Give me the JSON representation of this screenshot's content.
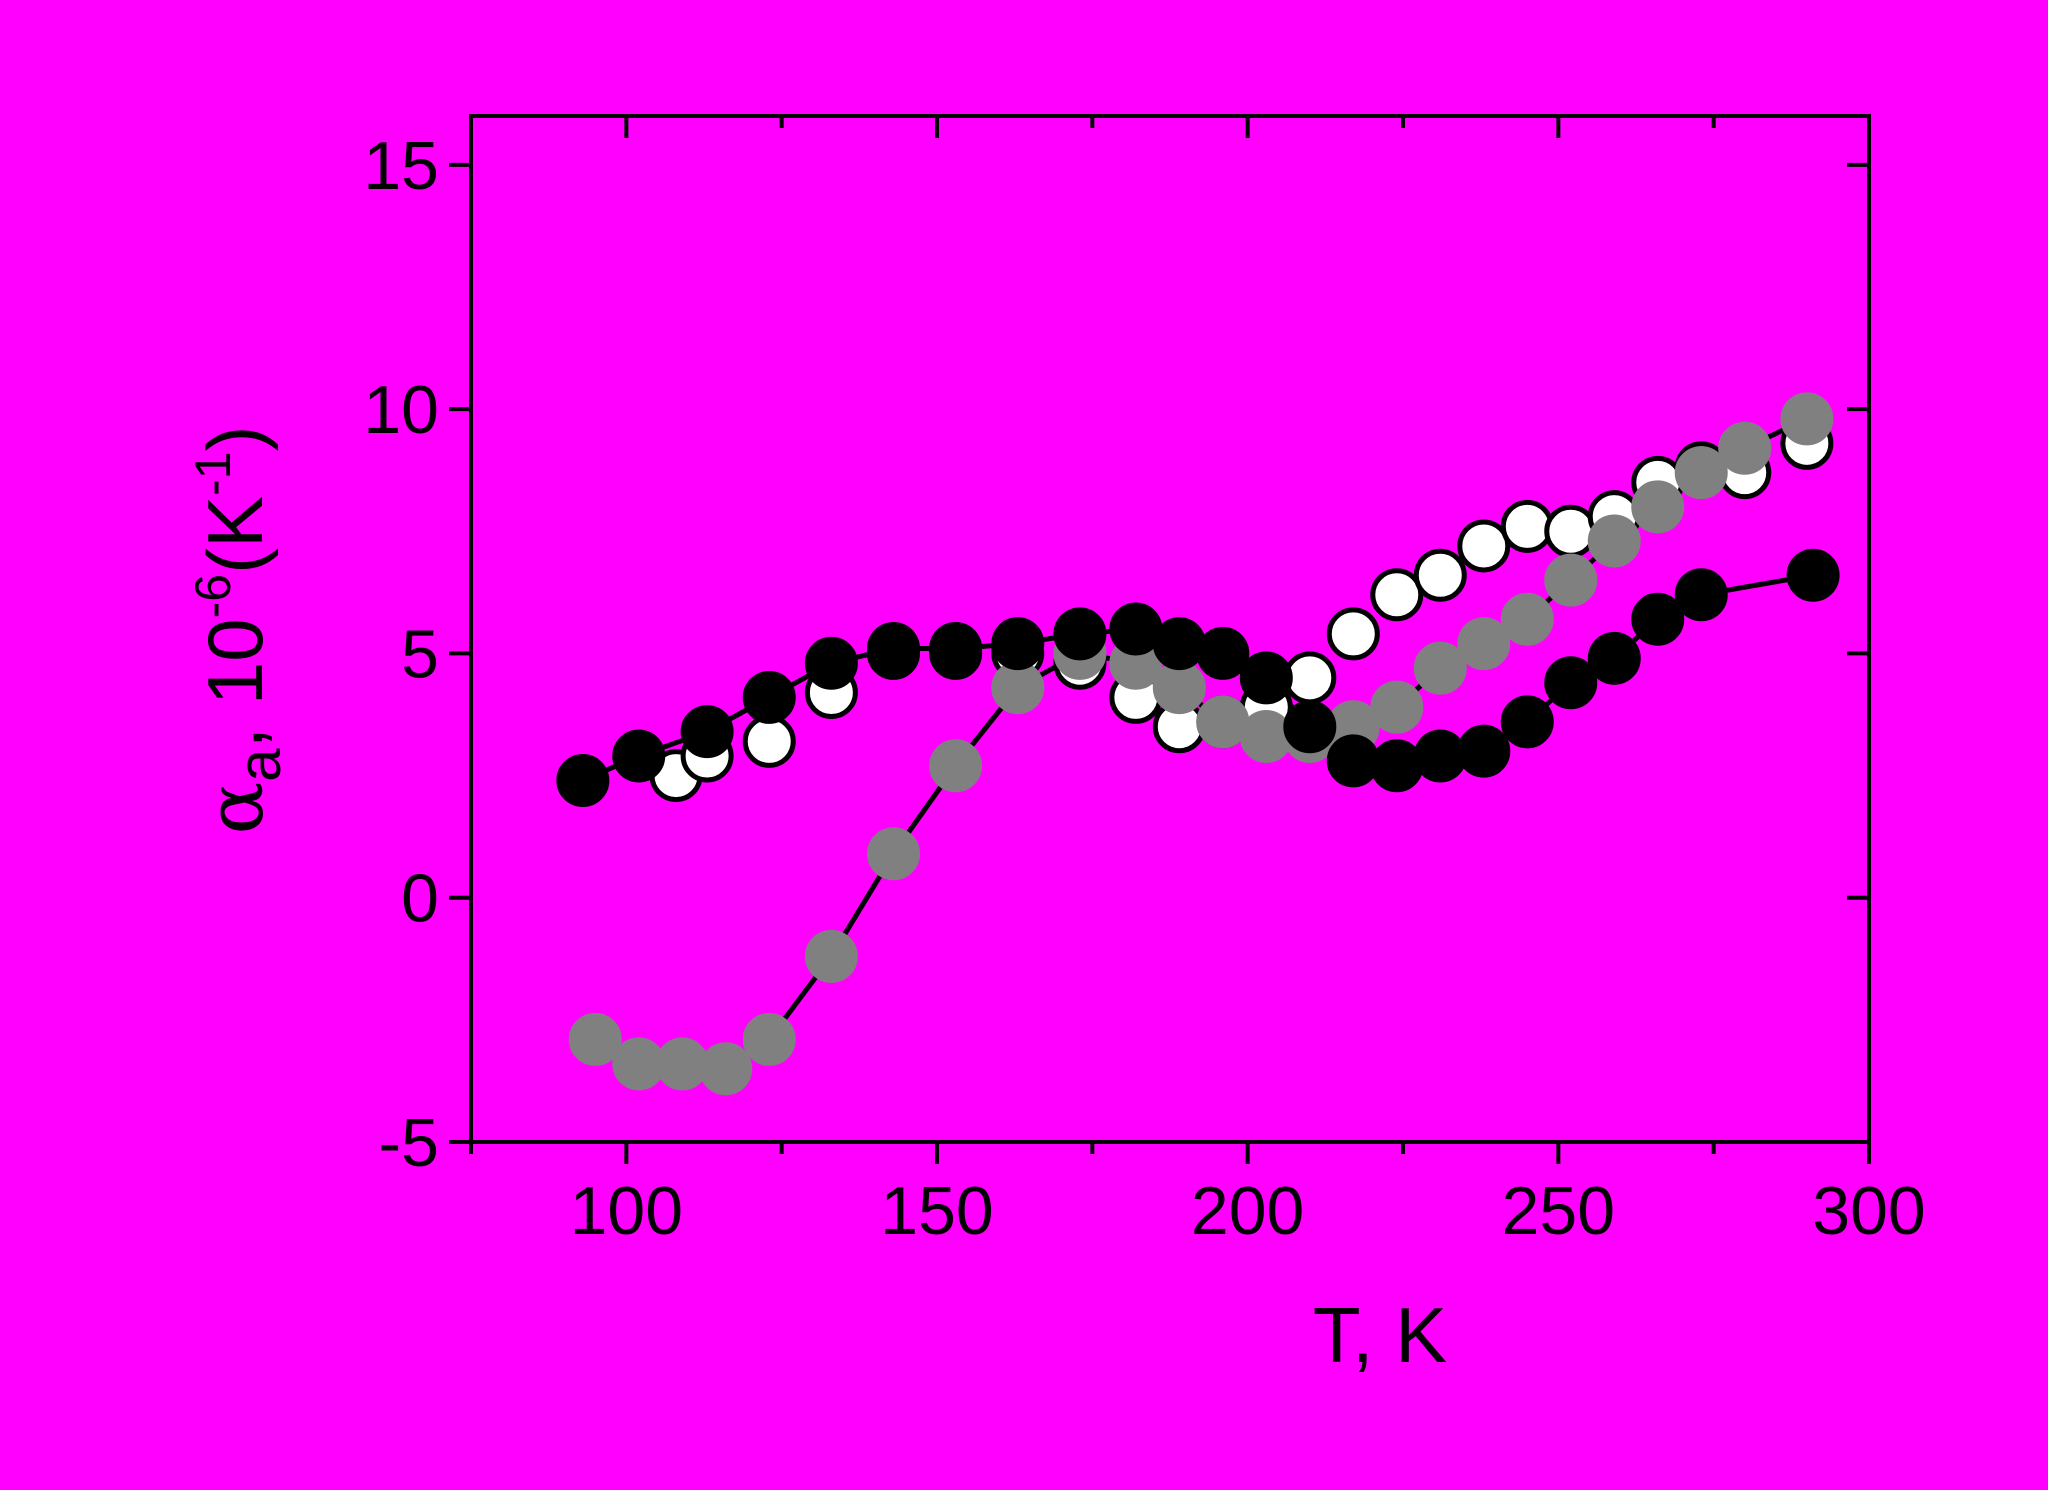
{
  "chart_data": {
    "type": "scatter",
    "title": "",
    "xlabel": "T, K",
    "ylabel_parts": {
      "alpha": "α",
      "sub": "a",
      "mid": ", 10",
      "exp": "-6",
      "unit_open": "(K",
      "unit_exp": "-1",
      "unit_close": ")"
    },
    "xlim": [
      75,
      300
    ],
    "ylim": [
      -5,
      16
    ],
    "xticks": [
      100,
      150,
      200,
      250,
      300
    ],
    "yticks": [
      -5,
      0,
      5,
      10,
      15
    ],
    "grid": false,
    "legend": "none",
    "background": "#ff00ff",
    "series": [
      {
        "fill": "#ffffff",
        "stroke": "#000000",
        "line": false,
        "x": [
          108,
          113,
          123,
          133,
          143,
          153,
          163,
          173,
          182,
          189,
          196,
          203,
          210,
          217,
          224,
          231,
          238,
          245,
          252,
          259,
          266,
          273,
          280,
          290
        ],
        "y": [
          2.5,
          2.9,
          3.2,
          4.2,
          5.0,
          5.0,
          5.0,
          4.8,
          4.1,
          3.5,
          3.6,
          3.9,
          4.5,
          5.4,
          6.2,
          6.6,
          7.2,
          7.6,
          7.5,
          7.8,
          8.5,
          8.8,
          8.7,
          9.3
        ]
      },
      {
        "fill": "#808080",
        "stroke": "#808080",
        "line": true,
        "x": [
          95,
          102,
          109,
          116,
          123,
          133,
          143,
          153,
          163,
          173,
          182,
          189,
          196,
          203,
          210,
          217,
          224,
          231,
          238,
          245,
          252,
          259,
          266,
          273,
          280,
          290
        ],
        "y": [
          -2.9,
          -3.4,
          -3.4,
          -3.5,
          -2.9,
          -1.2,
          0.9,
          2.7,
          4.3,
          5.0,
          4.8,
          4.3,
          3.6,
          3.3,
          3.3,
          3.5,
          3.9,
          4.7,
          5.2,
          5.7,
          6.5,
          7.3,
          8.0,
          8.7,
          9.2,
          9.8
        ]
      },
      {
        "fill": "#000000",
        "stroke": "#000000",
        "line": true,
        "x": [
          93,
          102,
          113,
          123,
          133,
          143,
          153,
          163,
          173,
          182,
          189,
          196,
          203,
          210,
          217,
          224,
          231,
          238,
          245,
          252,
          259,
          266,
          273,
          291
        ],
        "y": [
          2.4,
          2.9,
          3.4,
          4.1,
          4.8,
          5.1,
          5.1,
          5.2,
          5.4,
          5.5,
          5.2,
          5.0,
          4.5,
          3.5,
          2.8,
          2.7,
          2.9,
          3.0,
          3.6,
          4.4,
          4.9,
          5.7,
          6.2,
          6.6
        ]
      }
    ]
  }
}
